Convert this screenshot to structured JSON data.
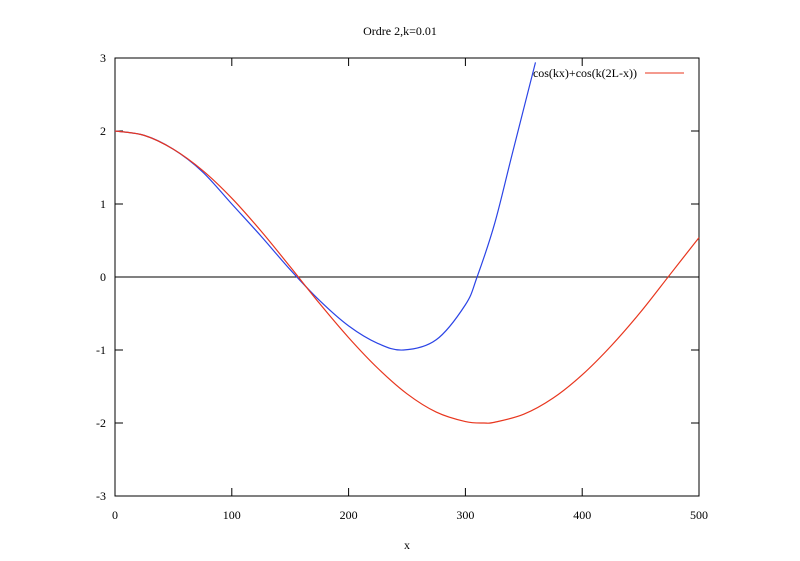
{
  "chart_data": {
    "type": "line",
    "title": "Ordre 2,k=0.01",
    "xlabel": "x",
    "ylabel": "",
    "xlim": [
      0,
      500
    ],
    "ylim": [
      -3,
      3
    ],
    "xticks": [
      "0",
      "100",
      "200",
      "300",
      "400",
      "500"
    ],
    "yticks": [
      "-3",
      "-2",
      "-1",
      "0",
      "1",
      "2",
      "3"
    ],
    "grid": false,
    "legend_position": "top-right",
    "zero_line": true,
    "series": [
      {
        "name": "cos(kx)+cos(k(2L-x))",
        "color": "#e8361e",
        "x": [
          0,
          25,
          50,
          75,
          100,
          125,
          150,
          175,
          200,
          225,
          250,
          275,
          300,
          316,
          325,
          350,
          375,
          400,
          425,
          450,
          475,
          500
        ],
        "y": [
          2.0,
          1.94,
          1.75,
          1.46,
          1.08,
          0.63,
          0.14,
          -0.36,
          -0.83,
          -1.25,
          -1.6,
          -1.85,
          -1.98,
          -2.0,
          -1.99,
          -1.88,
          -1.66,
          -1.34,
          -0.94,
          -0.48,
          0.03,
          0.54
        ]
      },
      {
        "name": "",
        "color": "#2b44e6",
        "x": [
          0,
          25,
          50,
          75,
          100,
          125,
          150,
          175,
          200,
          225,
          247,
          275,
          300,
          310,
          325,
          340,
          360
        ],
        "y": [
          2.0,
          1.94,
          1.75,
          1.44,
          1.0,
          0.56,
          0.1,
          -0.32,
          -0.67,
          -0.91,
          -1.0,
          -0.86,
          -0.38,
          0.0,
          0.73,
          1.68,
          2.94
        ]
      }
    ]
  }
}
